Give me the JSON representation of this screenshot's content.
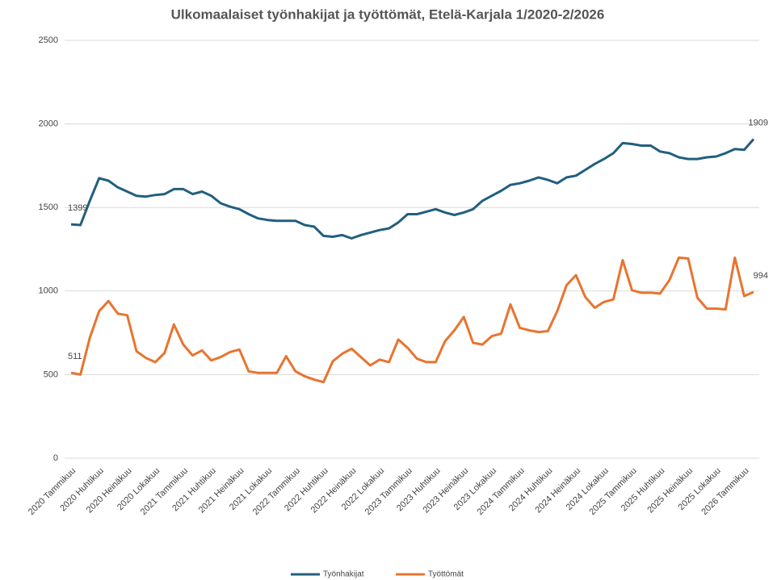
{
  "chart_data": {
    "type": "line",
    "title": "Ulkomaalaiset työnhakijat ja työttömät, Etelä-Karjala 1/2020-2/2026",
    "categories": [
      "2020 Tammikuu",
      null,
      null,
      "2020 Huhtikuu",
      null,
      null,
      "2020 Heinäkuu",
      null,
      null,
      "2020 Lokakuu",
      null,
      null,
      "2021 Tammikuu",
      null,
      null,
      "2021 Huhtikuu",
      null,
      null,
      "2021 Heinäkuu",
      null,
      null,
      "2021 Lokakuu",
      null,
      null,
      "2022 Tammikuu",
      null,
      null,
      "2022 Huhtikuu",
      null,
      null,
      "2022 Heinäkuu",
      null,
      null,
      "2022 Lokakuu",
      null,
      null,
      "2023 Tammikuu",
      null,
      null,
      "2023 Huhtikuu",
      null,
      null,
      "2023 Heinäkuu",
      null,
      null,
      "2023 Lokakuu",
      null,
      null,
      "2024 Tammikuu",
      null,
      null,
      "2024 Huhtikuu",
      null,
      null,
      "2024 Heinäkuu",
      null,
      null,
      "2024 Lokakuu",
      null,
      null,
      "2025 Tammikuu",
      null,
      null,
      "2025 Huhtikuu",
      null,
      null,
      "2025 Heinäkuu",
      null,
      null,
      "2025 Lokakuu",
      null,
      null,
      "2026 Tammikuu",
      null
    ],
    "series": [
      {
        "name": "Työnhakijat",
        "color": "#215f7f",
        "values": [
          1399,
          1395,
          1540,
          1675,
          1660,
          1620,
          1595,
          1570,
          1565,
          1575,
          1580,
          1610,
          1610,
          1580,
          1595,
          1570,
          1525,
          1505,
          1490,
          1460,
          1435,
          1425,
          1420,
          1420,
          1420,
          1395,
          1385,
          1330,
          1325,
          1335,
          1315,
          1335,
          1350,
          1365,
          1375,
          1410,
          1460,
          1460,
          1475,
          1490,
          1470,
          1455,
          1470,
          1490,
          1540,
          1570,
          1600,
          1635,
          1645,
          1660,
          1680,
          1665,
          1645,
          1680,
          1690,
          1725,
          1760,
          1790,
          1825,
          1885,
          1880,
          1870,
          1870,
          1835,
          1825,
          1800,
          1790,
          1790,
          1800,
          1805,
          1825,
          1850,
          1845,
          1909
        ]
      },
      {
        "name": "Työttömät",
        "color": "#e8742f",
        "values": [
          511,
          500,
          720,
          880,
          940,
          865,
          855,
          640,
          600,
          575,
          630,
          800,
          680,
          615,
          645,
          585,
          605,
          635,
          650,
          520,
          510,
          510,
          510,
          610,
          520,
          490,
          470,
          455,
          580,
          625,
          655,
          605,
          555,
          590,
          575,
          710,
          660,
          595,
          575,
          575,
          700,
          765,
          845,
          690,
          680,
          730,
          745,
          920,
          780,
          765,
          755,
          760,
          880,
          1035,
          1095,
          965,
          900,
          935,
          950,
          1185,
          1005,
          990,
          990,
          985,
          1065,
          1200,
          1195,
          960,
          895,
          895,
          890,
          1200,
          970,
          994
        ]
      }
    ],
    "ylim": [
      0,
      2500
    ],
    "yticks": [
      0,
      500,
      1000,
      1500,
      2000,
      2500
    ],
    "grid": true,
    "legend": "bottom"
  }
}
